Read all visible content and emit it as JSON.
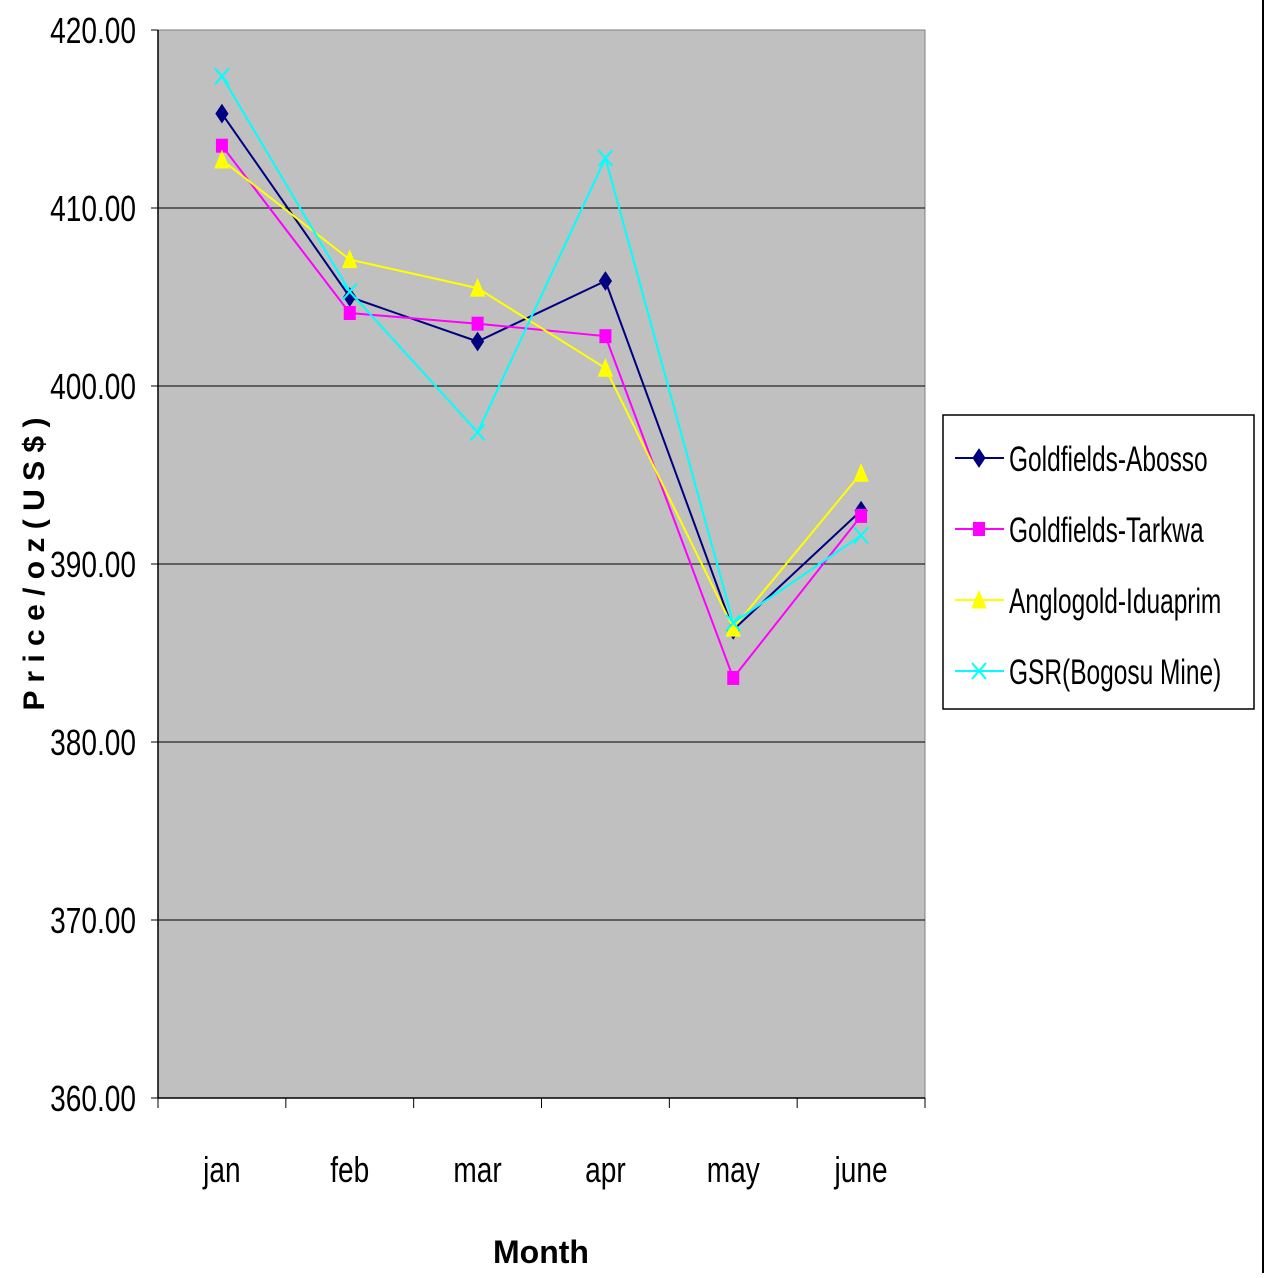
{
  "chart_data": {
    "type": "line",
    "categories": [
      "jan",
      "feb",
      "mar",
      "apr",
      "may",
      "june"
    ],
    "series": [
      {
        "name": "Goldfields-Abosso",
        "values": [
          415.3,
          405.0,
          402.5,
          405.9,
          386.3,
          393.0
        ],
        "color": "#000080",
        "marker": "diamond"
      },
      {
        "name": "Goldfields-Tarkwa",
        "values": [
          413.5,
          404.1,
          403.5,
          402.8,
          383.6,
          392.7
        ],
        "color": "#ff00ff",
        "marker": "square"
      },
      {
        "name": "Anglogold-Iduaprim",
        "values": [
          412.7,
          407.1,
          405.5,
          401.0,
          386.4,
          395.1
        ],
        "color": "#ffff00",
        "marker": "triangle"
      },
      {
        "name": "GSR(Bogosu Mine)",
        "values": [
          417.4,
          405.3,
          397.4,
          412.8,
          386.7,
          391.6
        ],
        "color": "#00ffff",
        "marker": "x"
      }
    ],
    "xlabel": "Month",
    "ylabel": "P r i c e / o z ( U S $ )",
    "ylim": [
      360,
      420
    ],
    "yticks": [
      "360.00",
      "370.00",
      "380.00",
      "390.00",
      "400.00",
      "410.00",
      "420.00"
    ],
    "grid": true,
    "plot_background": "#c0c0c0",
    "legend_position": "right"
  }
}
